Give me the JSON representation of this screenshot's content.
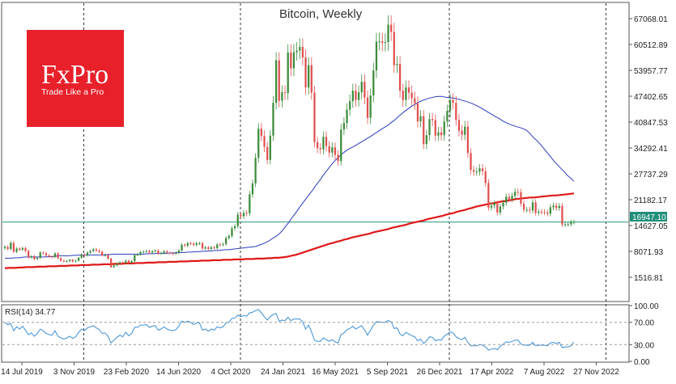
{
  "chart_data": [
    {
      "type": "candlestick",
      "title": "Bitcoin, Weekly",
      "x_tick_labels": [
        "14 Jul 2019",
        "3 Nov 2019",
        "23 Feb 2020",
        "14 Jun 2020",
        "4 Oct 2020",
        "24 Jan 2021",
        "16 May 2021",
        "5 Sep 2021",
        "26 Dec 2021",
        "17 Apr 2022",
        "7 Aug 2022",
        "27 Nov 2022"
      ],
      "y_tick_labels": [
        "67068.01",
        "60512.89",
        "53957.77",
        "47402.65",
        "40847.53",
        "34292.41",
        "27737.29",
        "21182.17",
        "14627.05",
        "8071.93",
        "1516.81"
      ],
      "ylim": [
        -2500,
        71000
      ],
      "y_scale": "linear",
      "current_price": "16947.10",
      "current_price_color": "#1f8f7a",
      "candle_colors": {
        "up": "#3b8c3b",
        "down": "#e05050"
      },
      "series": [
        {
          "name": "",
          "type": "candlestick",
          "close": [
            10800,
            10300,
            11800,
            9600,
            10400,
            10100,
            10500,
            9800,
            8200,
            8500,
            7800,
            8100,
            9400,
            9200,
            8700,
            8400,
            8300,
            9200,
            8000,
            7400,
            7200,
            7300,
            7600,
            7200,
            7400,
            8100,
            8900,
            8700,
            9400,
            9800,
            10200,
            9900,
            9600,
            8700,
            8800,
            7900,
            5800,
            6200,
            6700,
            7000,
            6800,
            7400,
            6900,
            7300,
            8800,
            8900,
            9500,
            9600,
            9800,
            9400,
            9700,
            9900,
            9100,
            9300,
            9700,
            9400,
            9200,
            9100,
            9300,
            9900,
            11300,
            11100,
            11700,
            11600,
            11300,
            11700,
            11700,
            10400,
            10700,
            10300,
            10700,
            10500,
            11400,
            11300,
            11500,
            13000,
            13500,
            15400,
            15900,
            18800,
            18400,
            19200,
            19100,
            23800,
            26500,
            32800,
            40000,
            38200,
            35500,
            32300,
            38300,
            46400,
            56900,
            46900,
            49000,
            48800,
            58800,
            54900,
            58900,
            59300,
            60200,
            57600,
            50200,
            55700,
            48900,
            36700,
            35200,
            34900,
            38000,
            35700,
            34100,
            35400,
            33500,
            32000,
            39800,
            41400,
            44700,
            46800,
            49400,
            47100,
            49000,
            51600,
            47700,
            42700,
            48200,
            54400,
            61500,
            61600,
            61200,
            61400,
            65700,
            63900,
            55700,
            56000,
            49400,
            47100,
            50200,
            48900,
            47500,
            46300,
            41800,
            43100,
            36200,
            38400,
            42400,
            42100,
            38300,
            39100,
            38400,
            41800,
            44400,
            47100,
            46400,
            42200,
            39500,
            38500,
            40500,
            34000,
            29800,
            29400,
            29400,
            30200,
            29500,
            26600,
            20500,
            21000,
            21500,
            19300,
            20800,
            21700,
            23200,
            22600,
            23400,
            24400,
            24300,
            21500,
            20000,
            20000,
            19800,
            21800,
            19200,
            19500,
            19400,
            19300,
            19000,
            20600,
            21000,
            20400,
            20900,
            16300,
            16400,
            16400,
            16900,
            16947
          ],
          "ma_short": [
            8000,
            8000,
            8000,
            8100,
            8100,
            8200,
            8300,
            8300,
            8300,
            8300,
            8300,
            8300,
            8300,
            8400,
            8400,
            8500,
            8600,
            8600,
            8600,
            8600,
            8700,
            8700,
            8800,
            8800,
            8800,
            8800,
            8800,
            8800,
            8800,
            8800,
            8900,
            8900,
            9000,
            9000,
            9000,
            9000,
            9000,
            9000,
            9000,
            9000,
            9000,
            9000,
            9100,
            9100,
            9100,
            9200,
            9200,
            9200,
            9200,
            9300,
            9300,
            9400,
            9400,
            9400,
            9500,
            9500,
            9600,
            9600,
            9700,
            9700,
            9800,
            9800,
            9900,
            9900,
            10000,
            10100,
            10100,
            10200,
            10300,
            10400,
            10500,
            10600,
            10700,
            10800,
            10900,
            11200,
            11500,
            11900,
            12300,
            12900,
            13400,
            14000,
            14900,
            16000,
            17100,
            18300,
            19400,
            20600,
            21700,
            22800,
            23900,
            25000,
            26200,
            27300,
            28500,
            29600,
            30700,
            31700,
            32600,
            33400,
            34100,
            34700,
            35200,
            35600,
            36100,
            36600,
            37100,
            37600,
            38100,
            38700,
            39200,
            39800,
            40300,
            40800,
            41500,
            42100,
            42900,
            43600,
            44300,
            44900,
            45500,
            46000,
            46500,
            46900,
            47200,
            47500,
            47700,
            47900,
            48000,
            48000,
            47800,
            47700,
            47600,
            47500,
            47300,
            47000,
            46800,
            46500,
            46200,
            45800,
            45400,
            44900,
            44400,
            43900,
            43400,
            42900,
            42500,
            41900,
            41500,
            41100,
            40800,
            40500,
            40300,
            40000,
            39600,
            38800,
            37800,
            37100,
            36200,
            35200,
            34200,
            33200,
            32100,
            31200,
            30300,
            29500,
            28500,
            27800,
            27000
          ],
          "ma_long": [
            5500,
            5600,
            5600,
            5600,
            5700,
            5700,
            5800,
            5800,
            5800,
            5900,
            5900,
            5900,
            6000,
            6000,
            6000,
            6100,
            6100,
            6100,
            6200,
            6200,
            6200,
            6300,
            6300,
            6300,
            6400,
            6400,
            6400,
            6500,
            6500,
            6500,
            6600,
            6600,
            6600,
            6700,
            6700,
            6700,
            6800,
            6800,
            6800,
            6900,
            6900,
            6900,
            7000,
            7000,
            7000,
            7100,
            7100,
            7100,
            7200,
            7200,
            7200,
            7300,
            7300,
            7300,
            7400,
            7400,
            7400,
            7500,
            7500,
            7500,
            7600,
            7600,
            7600,
            7700,
            7700,
            7700,
            7800,
            7800,
            7800,
            7900,
            7900,
            7900,
            8000,
            8000,
            8100,
            8100,
            8200,
            8300,
            8500,
            8700,
            8900,
            9200,
            9500,
            9800,
            10100,
            10400,
            10700,
            11000,
            11300,
            11600,
            11800,
            12100,
            12300,
            12600,
            12800,
            13100,
            13300,
            13500,
            13700,
            13900,
            14100,
            14400,
            14600,
            14800,
            15000,
            15200,
            15500,
            15700,
            15900,
            16100,
            16300,
            16600,
            16800,
            17000,
            17200,
            17400,
            17700,
            17900,
            18100,
            18300,
            18500,
            18800,
            19000,
            19200,
            19500,
            19700,
            19900,
            20200,
            20400,
            20700,
            20900,
            21100,
            21300,
            21500,
            21600,
            21800,
            22000,
            22100,
            22300,
            22400,
            22600,
            22700,
            22800,
            22900,
            23000,
            23000,
            23100,
            23200,
            23300,
            23400,
            23500,
            23500,
            23600,
            23700,
            23800,
            23900,
            24000
          ]
        }
      ],
      "hlines": [
        16947
      ]
    },
    {
      "type": "line",
      "title": "RSI(14) 34.77",
      "y_tick_labels": [
        "100.00",
        "70.00",
        "30.00",
        "0.00"
      ],
      "ylim": [
        0,
        100
      ],
      "levels": [
        70,
        30
      ],
      "series": [
        {
          "name": "RSI(14)",
          "values": [
            70,
            66,
            68,
            55,
            62,
            58,
            63,
            56,
            48,
            51,
            45,
            50,
            58,
            55,
            50,
            48,
            47,
            55,
            45,
            42,
            40,
            42,
            45,
            41,
            44,
            52,
            58,
            55,
            60,
            62,
            64,
            60,
            57,
            50,
            51,
            45,
            33,
            38,
            43,
            47,
            44,
            52,
            46,
            50,
            61,
            61,
            65,
            65,
            66,
            61,
            63,
            64,
            56,
            58,
            62,
            58,
            56,
            55,
            57,
            63,
            72,
            70,
            72,
            70,
            66,
            69,
            69,
            56,
            58,
            54,
            58,
            56,
            62,
            60,
            62,
            69,
            70,
            77,
            78,
            83,
            80,
            82,
            81,
            87,
            88,
            91,
            93,
            87,
            80,
            74,
            80,
            84,
            86,
            72,
            74,
            73,
            79,
            73,
            76,
            76,
            76,
            71,
            58,
            65,
            53,
            38,
            36,
            36,
            42,
            39,
            36,
            39,
            35,
            33,
            48,
            51,
            57,
            59,
            63,
            58,
            61,
            64,
            56,
            47,
            56,
            65,
            71,
            71,
            70,
            70,
            73,
            71,
            59,
            60,
            49,
            46,
            52,
            49,
            46,
            44,
            37,
            40,
            32,
            37,
            44,
            43,
            37,
            39,
            38,
            45,
            49,
            53,
            51,
            44,
            41,
            39,
            43,
            34,
            28,
            28,
            28,
            30,
            29,
            26,
            20,
            22,
            23,
            21,
            27,
            31,
            35,
            34,
            36,
            38,
            38,
            31,
            29,
            29,
            29,
            34,
            28,
            29,
            29,
            29,
            28,
            33,
            34,
            32,
            34,
            25,
            26,
            26,
            28,
            34.77
          ]
        }
      ]
    }
  ],
  "logo": {
    "brand": "FxPro",
    "tagline": "Trade Like a Pro",
    "color": "#e8202a"
  },
  "colors": {
    "ma_short": "#2a3cbf",
    "ma_long": "#e01818",
    "rsi": "#3a8fd6",
    "price_line": "#2a9a80"
  }
}
